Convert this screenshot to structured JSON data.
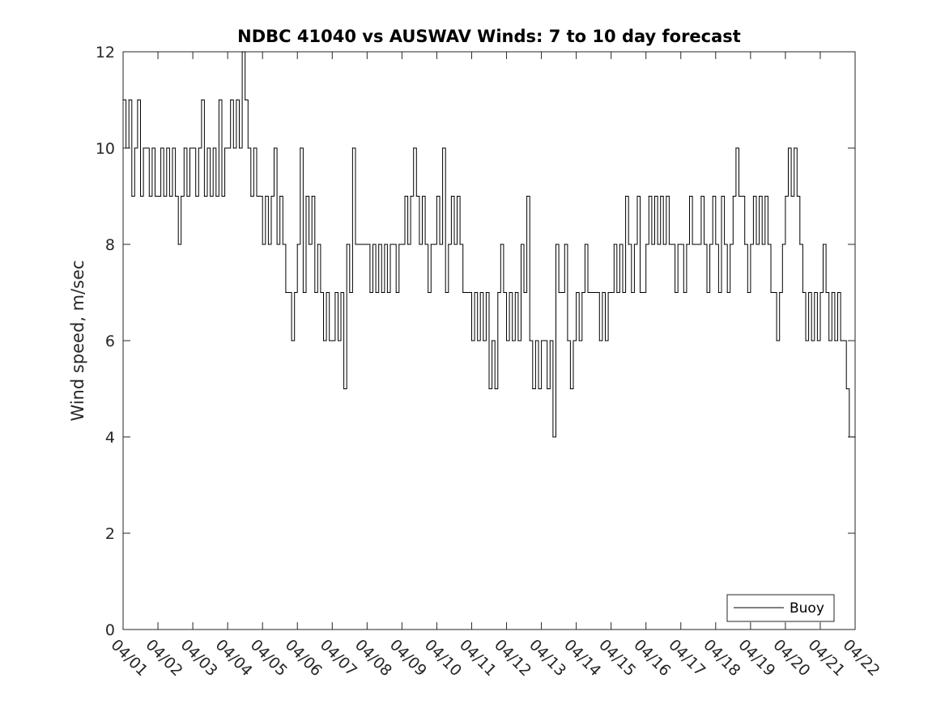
{
  "chart_data": {
    "type": "line",
    "title": "NDBC 41040 vs AUSWAV Winds: 7 to 10 day forecast",
    "xlabel": "",
    "ylabel": "Wind speed, m/sec",
    "x_unit": "date (MM/DD)",
    "xlim": [
      "04/01",
      "04/22"
    ],
    "ylim": [
      0,
      12
    ],
    "yticks": [
      0,
      2,
      4,
      6,
      8,
      10,
      12
    ],
    "xticks": [
      "04/01",
      "04/02",
      "04/03",
      "04/04",
      "04/05",
      "04/06",
      "04/07",
      "04/08",
      "04/09",
      "04/10",
      "04/11",
      "04/12",
      "04/13",
      "04/14",
      "04/15",
      "04/16",
      "04/17",
      "04/18",
      "04/19",
      "04/20",
      "04/21",
      "04/22"
    ],
    "grid": false,
    "legend": {
      "position": "bottom-right",
      "entries": [
        "Buoy"
      ]
    },
    "series": [
      {
        "name": "Buoy",
        "color": "#000000",
        "step": true,
        "points": [
          [
            "04/01 00:00",
            11
          ],
          [
            "04/01 02:00",
            10
          ],
          [
            "04/01 04:00",
            11
          ],
          [
            "04/01 06:00",
            9
          ],
          [
            "04/01 08:00",
            10
          ],
          [
            "04/01 10:00",
            11
          ],
          [
            "04/01 12:00",
            9
          ],
          [
            "04/01 14:00",
            10
          ],
          [
            "04/01 16:00",
            10
          ],
          [
            "04/01 18:00",
            9
          ],
          [
            "04/01 20:00",
            10
          ],
          [
            "04/01 22:00",
            9
          ],
          [
            "04/02 00:00",
            9
          ],
          [
            "04/02 02:00",
            10
          ],
          [
            "04/02 04:00",
            9
          ],
          [
            "04/02 06:00",
            10
          ],
          [
            "04/02 08:00",
            9
          ],
          [
            "04/02 10:00",
            10
          ],
          [
            "04/02 12:00",
            9
          ],
          [
            "04/02 14:00",
            8
          ],
          [
            "04/02 16:00",
            9
          ],
          [
            "04/02 18:00",
            10
          ],
          [
            "04/02 20:00",
            9
          ],
          [
            "04/02 22:00",
            10
          ],
          [
            "04/03 00:00",
            10
          ],
          [
            "04/03 02:00",
            9
          ],
          [
            "04/03 04:00",
            10
          ],
          [
            "04/03 06:00",
            11
          ],
          [
            "04/03 08:00",
            9
          ],
          [
            "04/03 10:00",
            10
          ],
          [
            "04/03 12:00",
            9
          ],
          [
            "04/03 14:00",
            10
          ],
          [
            "04/03 16:00",
            9
          ],
          [
            "04/03 18:00",
            11
          ],
          [
            "04/03 20:00",
            9
          ],
          [
            "04/03 22:00",
            10
          ],
          [
            "04/04 00:00",
            10
          ],
          [
            "04/04 02:00",
            11
          ],
          [
            "04/04 04:00",
            10
          ],
          [
            "04/04 06:00",
            11
          ],
          [
            "04/04 08:00",
            10
          ],
          [
            "04/04 10:00",
            12
          ],
          [
            "04/04 12:00",
            11
          ],
          [
            "04/04 14:00",
            10
          ],
          [
            "04/04 16:00",
            9
          ],
          [
            "04/04 18:00",
            10
          ],
          [
            "04/04 20:00",
            9
          ],
          [
            "04/04 22:00",
            9
          ],
          [
            "04/05 00:00",
            8
          ],
          [
            "04/05 02:00",
            9
          ],
          [
            "04/05 04:00",
            8
          ],
          [
            "04/05 06:00",
            9
          ],
          [
            "04/05 08:00",
            10
          ],
          [
            "04/05 10:00",
            8
          ],
          [
            "04/05 12:00",
            9
          ],
          [
            "04/05 14:00",
            8
          ],
          [
            "04/05 16:00",
            7
          ],
          [
            "04/05 18:00",
            7
          ],
          [
            "04/05 20:00",
            6
          ],
          [
            "04/05 22:00",
            7
          ],
          [
            "04/06 00:00",
            8
          ],
          [
            "04/06 02:00",
            10
          ],
          [
            "04/06 04:00",
            7
          ],
          [
            "04/06 06:00",
            9
          ],
          [
            "04/06 08:00",
            8
          ],
          [
            "04/06 10:00",
            9
          ],
          [
            "04/06 12:00",
            7
          ],
          [
            "04/06 14:00",
            8
          ],
          [
            "04/06 16:00",
            7
          ],
          [
            "04/06 18:00",
            6
          ],
          [
            "04/06 20:00",
            7
          ],
          [
            "04/06 22:00",
            6
          ],
          [
            "04/07 00:00",
            6
          ],
          [
            "04/07 02:00",
            7
          ],
          [
            "04/07 04:00",
            6
          ],
          [
            "04/07 06:00",
            7
          ],
          [
            "04/07 08:00",
            5
          ],
          [
            "04/07 10:00",
            8
          ],
          [
            "04/07 12:00",
            7
          ],
          [
            "04/07 14:00",
            10
          ],
          [
            "04/07 16:00",
            8
          ],
          [
            "04/07 18:00",
            8
          ],
          [
            "04/07 20:00",
            8
          ],
          [
            "04/07 22:00",
            8
          ],
          [
            "04/08 00:00",
            8
          ],
          [
            "04/08 02:00",
            7
          ],
          [
            "04/08 04:00",
            8
          ],
          [
            "04/08 06:00",
            7
          ],
          [
            "04/08 08:00",
            8
          ],
          [
            "04/08 10:00",
            7
          ],
          [
            "04/08 12:00",
            8
          ],
          [
            "04/08 14:00",
            7
          ],
          [
            "04/08 16:00",
            8
          ],
          [
            "04/08 18:00",
            8
          ],
          [
            "04/08 20:00",
            7
          ],
          [
            "04/08 22:00",
            8
          ],
          [
            "04/09 00:00",
            8
          ],
          [
            "04/09 02:00",
            9
          ],
          [
            "04/09 04:00",
            8
          ],
          [
            "04/09 06:00",
            9
          ],
          [
            "04/09 08:00",
            10
          ],
          [
            "04/09 10:00",
            9
          ],
          [
            "04/09 12:00",
            8
          ],
          [
            "04/09 14:00",
            9
          ],
          [
            "04/09 16:00",
            8
          ],
          [
            "04/09 18:00",
            7
          ],
          [
            "04/09 20:00",
            8
          ],
          [
            "04/09 22:00",
            8
          ],
          [
            "04/10 00:00",
            9
          ],
          [
            "04/10 02:00",
            8
          ],
          [
            "04/10 04:00",
            10
          ],
          [
            "04/10 06:00",
            7
          ],
          [
            "04/10 08:00",
            8
          ],
          [
            "04/10 10:00",
            9
          ],
          [
            "04/10 12:00",
            8
          ],
          [
            "04/10 14:00",
            9
          ],
          [
            "04/10 16:00",
            8
          ],
          [
            "04/10 18:00",
            7
          ],
          [
            "04/10 20:00",
            7
          ],
          [
            "04/10 22:00",
            7
          ],
          [
            "04/11 00:00",
            6
          ],
          [
            "04/11 02:00",
            7
          ],
          [
            "04/11 04:00",
            6
          ],
          [
            "04/11 06:00",
            7
          ],
          [
            "04/11 08:00",
            6
          ],
          [
            "04/11 10:00",
            7
          ],
          [
            "04/11 12:00",
            5
          ],
          [
            "04/11 14:00",
            6
          ],
          [
            "04/11 16:00",
            5
          ],
          [
            "04/11 18:00",
            7
          ],
          [
            "04/11 20:00",
            8
          ],
          [
            "04/11 22:00",
            7
          ],
          [
            "04/12 00:00",
            6
          ],
          [
            "04/12 02:00",
            7
          ],
          [
            "04/12 04:00",
            6
          ],
          [
            "04/12 06:00",
            7
          ],
          [
            "04/12 08:00",
            6
          ],
          [
            "04/12 10:00",
            8
          ],
          [
            "04/12 12:00",
            7
          ],
          [
            "04/12 14:00",
            9
          ],
          [
            "04/12 16:00",
            6
          ],
          [
            "04/12 18:00",
            5
          ],
          [
            "04/12 20:00",
            6
          ],
          [
            "04/12 22:00",
            5
          ],
          [
            "04/13 00:00",
            6
          ],
          [
            "04/13 02:00",
            6
          ],
          [
            "04/13 04:00",
            5
          ],
          [
            "04/13 06:00",
            6
          ],
          [
            "04/13 08:00",
            4
          ],
          [
            "04/13 10:00",
            8
          ],
          [
            "04/13 12:00",
            7
          ],
          [
            "04/13 14:00",
            7
          ],
          [
            "04/13 16:00",
            8
          ],
          [
            "04/13 18:00",
            6
          ],
          [
            "04/13 20:00",
            5
          ],
          [
            "04/13 22:00",
            6
          ],
          [
            "04/14 00:00",
            7
          ],
          [
            "04/14 02:00",
            6
          ],
          [
            "04/14 04:00",
            7
          ],
          [
            "04/14 06:00",
            8
          ],
          [
            "04/14 08:00",
            7
          ],
          [
            "04/14 10:00",
            7
          ],
          [
            "04/14 12:00",
            7
          ],
          [
            "04/14 14:00",
            7
          ],
          [
            "04/14 16:00",
            6
          ],
          [
            "04/14 18:00",
            7
          ],
          [
            "04/14 20:00",
            6
          ],
          [
            "04/14 22:00",
            7
          ],
          [
            "04/15 00:00",
            7
          ],
          [
            "04/15 02:00",
            8
          ],
          [
            "04/15 04:00",
            7
          ],
          [
            "04/15 06:00",
            8
          ],
          [
            "04/15 08:00",
            7
          ],
          [
            "04/15 10:00",
            9
          ],
          [
            "04/15 12:00",
            8
          ],
          [
            "04/15 14:00",
            7
          ],
          [
            "04/15 16:00",
            8
          ],
          [
            "04/15 18:00",
            9
          ],
          [
            "04/15 20:00",
            7
          ],
          [
            "04/15 22:00",
            7
          ],
          [
            "04/16 00:00",
            8
          ],
          [
            "04/16 02:00",
            9
          ],
          [
            "04/16 04:00",
            8
          ],
          [
            "04/16 06:00",
            9
          ],
          [
            "04/16 08:00",
            8
          ],
          [
            "04/16 10:00",
            9
          ],
          [
            "04/16 12:00",
            8
          ],
          [
            "04/16 14:00",
            9
          ],
          [
            "04/16 16:00",
            8
          ],
          [
            "04/16 18:00",
            8
          ],
          [
            "04/16 20:00",
            7
          ],
          [
            "04/16 22:00",
            8
          ],
          [
            "04/17 00:00",
            8
          ],
          [
            "04/17 02:00",
            7
          ],
          [
            "04/17 04:00",
            8
          ],
          [
            "04/17 06:00",
            9
          ],
          [
            "04/17 08:00",
            8
          ],
          [
            "04/17 10:00",
            8
          ],
          [
            "04/17 12:00",
            8
          ],
          [
            "04/17 14:00",
            9
          ],
          [
            "04/17 16:00",
            8
          ],
          [
            "04/17 18:00",
            7
          ],
          [
            "04/17 20:00",
            8
          ],
          [
            "04/17 22:00",
            9
          ],
          [
            "04/18 00:00",
            8
          ],
          [
            "04/18 02:00",
            7
          ],
          [
            "04/18 04:00",
            9
          ],
          [
            "04/18 06:00",
            8
          ],
          [
            "04/18 08:00",
            7
          ],
          [
            "04/18 10:00",
            8
          ],
          [
            "04/18 12:00",
            9
          ],
          [
            "04/18 14:00",
            10
          ],
          [
            "04/18 16:00",
            9
          ],
          [
            "04/18 18:00",
            9
          ],
          [
            "04/18 20:00",
            8
          ],
          [
            "04/18 22:00",
            7
          ],
          [
            "04/19 00:00",
            8
          ],
          [
            "04/19 02:00",
            9
          ],
          [
            "04/19 04:00",
            8
          ],
          [
            "04/19 06:00",
            9
          ],
          [
            "04/19 08:00",
            8
          ],
          [
            "04/19 10:00",
            9
          ],
          [
            "04/19 12:00",
            8
          ],
          [
            "04/19 14:00",
            7
          ],
          [
            "04/19 16:00",
            7
          ],
          [
            "04/19 18:00",
            6
          ],
          [
            "04/19 20:00",
            7
          ],
          [
            "04/19 22:00",
            8
          ],
          [
            "04/20 00:00",
            9
          ],
          [
            "04/20 02:00",
            10
          ],
          [
            "04/20 04:00",
            9
          ],
          [
            "04/20 06:00",
            10
          ],
          [
            "04/20 08:00",
            9
          ],
          [
            "04/20 10:00",
            8
          ],
          [
            "04/20 12:00",
            7
          ],
          [
            "04/20 14:00",
            6
          ],
          [
            "04/20 16:00",
            7
          ],
          [
            "04/20 18:00",
            6
          ],
          [
            "04/20 20:00",
            7
          ],
          [
            "04/20 22:00",
            6
          ],
          [
            "04/21 00:00",
            7
          ],
          [
            "04/21 02:00",
            8
          ],
          [
            "04/21 04:00",
            7
          ],
          [
            "04/21 06:00",
            6
          ],
          [
            "04/21 08:00",
            7
          ],
          [
            "04/21 10:00",
            6
          ],
          [
            "04/21 12:00",
            7
          ],
          [
            "04/21 14:00",
            6
          ],
          [
            "04/21 16:00",
            6
          ],
          [
            "04/21 18:00",
            5
          ],
          [
            "04/21 20:00",
            4
          ],
          [
            "04/21 22:00",
            4
          ],
          [
            "04/22 00:00",
            4
          ]
        ]
      }
    ]
  }
}
